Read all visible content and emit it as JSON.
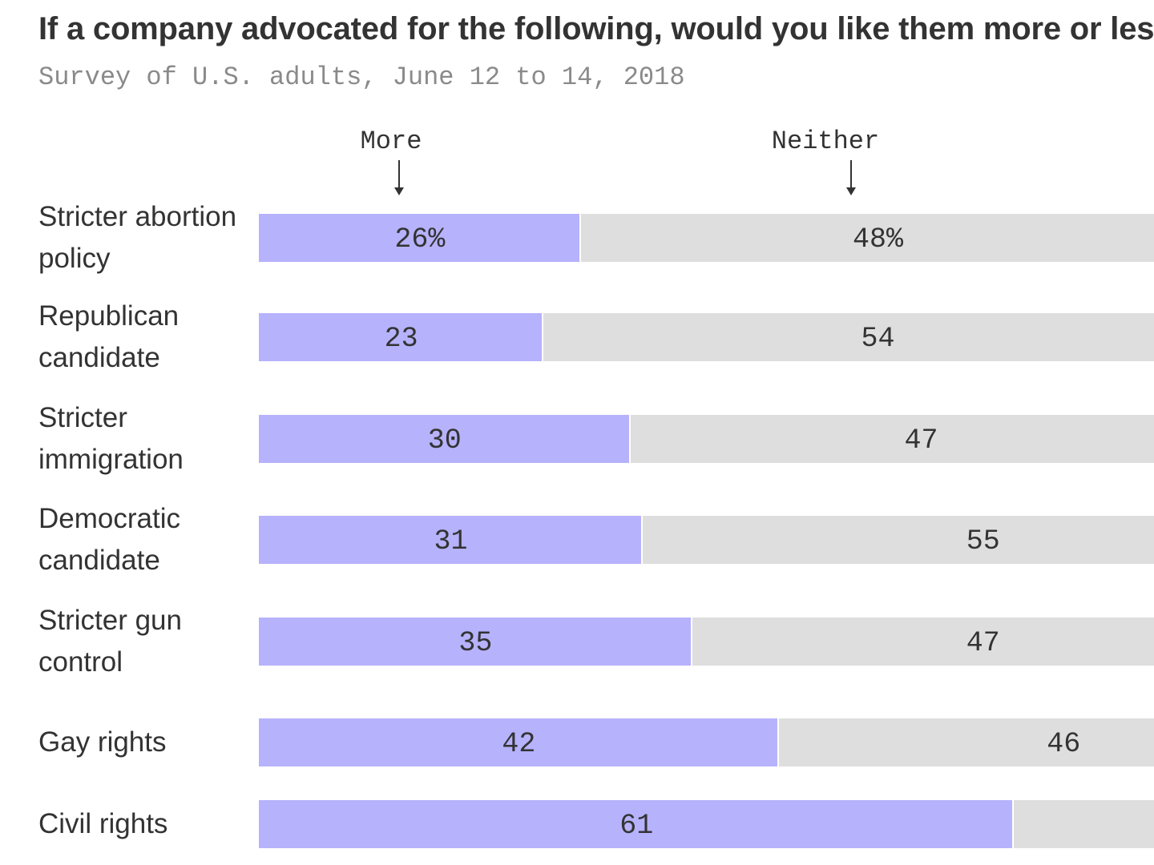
{
  "title": "If a company advocated for the following, would you like them more or less?",
  "subtitle": "Survey of U.S. adults, June 12 to 14, 2018",
  "colors": {
    "more": "#b6b2fc",
    "neither": "#dedede",
    "text": "#333333",
    "subtitle": "#8a8a8a"
  },
  "chart_data": {
    "type": "bar",
    "orientation": "horizontal",
    "stacked": true,
    "categories": [
      "Stricter abortion policy",
      "Republican candidate",
      "Stricter immigration",
      "Democratic candidate",
      "Stricter gun control",
      "Gay rights",
      "Civil rights"
    ],
    "series": [
      {
        "name": "More",
        "values": [
          26,
          23,
          30,
          31,
          35,
          42,
          61
        ],
        "labels": [
          "26%",
          "23",
          "30",
          "31",
          "35",
          "42",
          "61"
        ]
      },
      {
        "name": "Neither",
        "values": [
          48,
          54,
          47,
          55,
          47,
          46,
          null
        ],
        "labels": [
          "48%",
          "54",
          "47",
          "55",
          "47",
          "46",
          ""
        ]
      }
    ],
    "xlim": [
      0,
      100
    ],
    "legend": [
      "More",
      "Neither"
    ],
    "legend_position": "top"
  }
}
